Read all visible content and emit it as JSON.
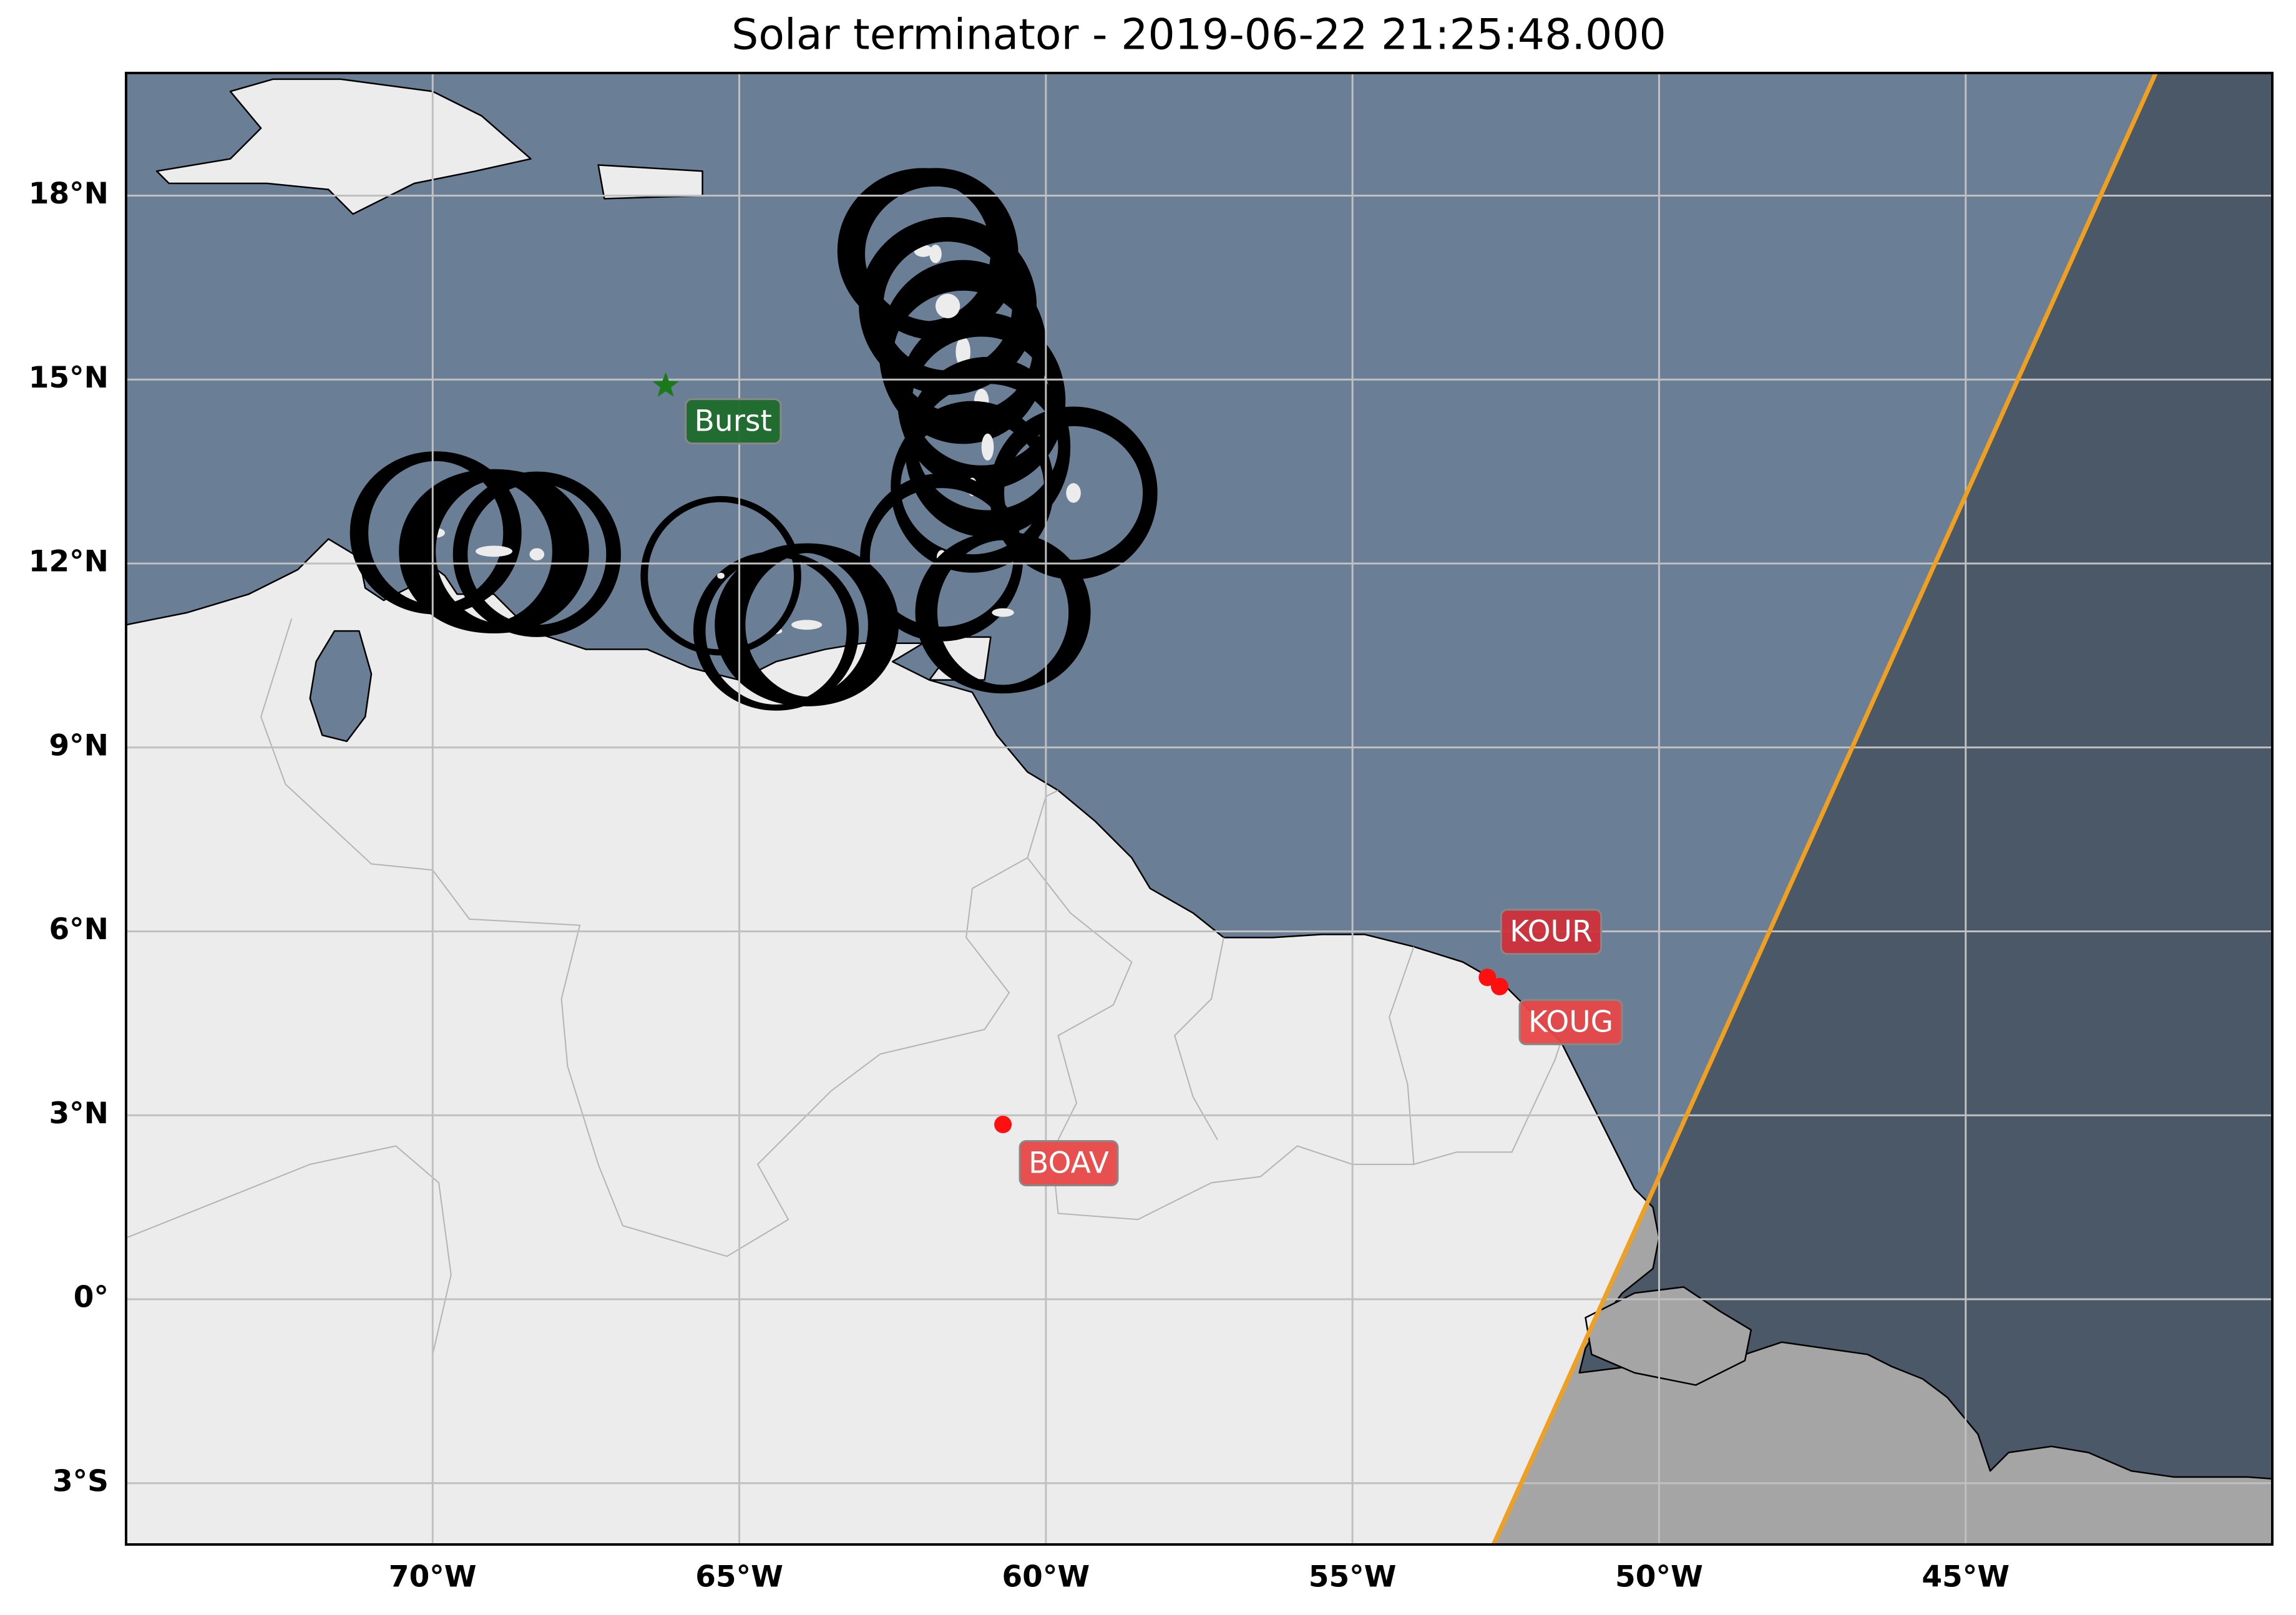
{
  "chart_data": {
    "type": "map",
    "title": "Solar terminator - 2019-06-22 21:25:48.000",
    "xlim": [
      -75,
      -40
    ],
    "ylim": [
      -4,
      20
    ],
    "xticks": [
      {
        "value": -70,
        "label": "70°W"
      },
      {
        "value": -65,
        "label": "65°W"
      },
      {
        "value": -60,
        "label": "60°W"
      },
      {
        "value": -55,
        "label": "55°W"
      },
      {
        "value": -50,
        "label": "50°W"
      },
      {
        "value": -45,
        "label": "45°W"
      }
    ],
    "yticks": [
      {
        "value": -3,
        "label": "3°S"
      },
      {
        "value": 0,
        "label": "0°"
      },
      {
        "value": 3,
        "label": "3°N"
      },
      {
        "value": 6,
        "label": "6°N"
      },
      {
        "value": 9,
        "label": "9°N"
      },
      {
        "value": 12,
        "label": "12°N"
      },
      {
        "value": 15,
        "label": "15°N"
      },
      {
        "value": 18,
        "label": "18°N"
      }
    ],
    "grid": true,
    "ocean_color": "#6a7f96",
    "land_color": "#ececec",
    "terminator": {
      "lon": [
        -52.7,
        -41.9
      ],
      "lat": [
        -4,
        20
      ],
      "color": "#f0a020"
    },
    "markers": [
      {
        "name": "Burst",
        "lon": -66.2,
        "lat": 14.9,
        "shape": "star",
        "color": "#1a7a1a",
        "box_color": "#1e6b2a"
      },
      {
        "name": "KOUR",
        "lon": -52.8,
        "lat": 5.25,
        "shape": "circle",
        "color": "#ff1010",
        "box_color": "#d0303a"
      },
      {
        "name": "KOUG",
        "lon": -52.6,
        "lat": 5.1,
        "shape": "circle",
        "color": "#ff1010",
        "box_color": "#e84848"
      },
      {
        "name": "BOAV",
        "lon": -60.7,
        "lat": 2.85,
        "shape": "circle",
        "color": "#ff1010",
        "box_color": "#e84848"
      }
    ]
  }
}
